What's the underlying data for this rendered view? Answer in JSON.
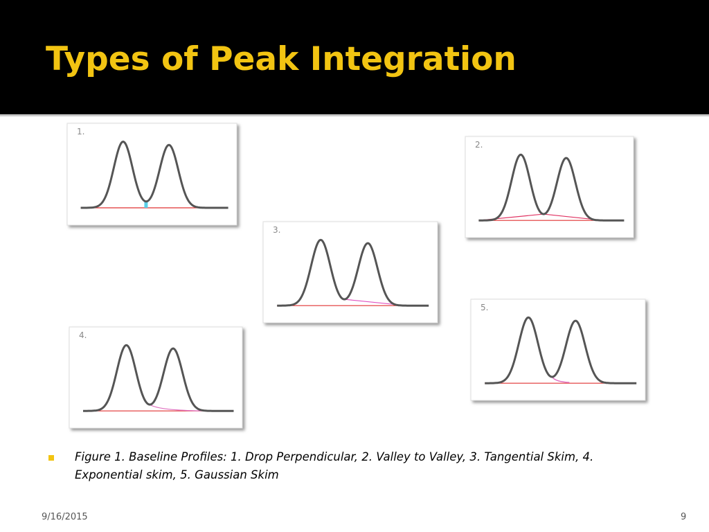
{
  "header": {
    "title": "Types of Peak Integration"
  },
  "figures": [
    {
      "label": "1."
    },
    {
      "label": "2."
    },
    {
      "label": "3."
    },
    {
      "label": "4."
    },
    {
      "label": "5."
    }
  ],
  "caption": {
    "lines": [
      "Figure 1. Baseline Profiles: 1. Drop Perpendicular,  2. Valley to Valley, 3. Tangential Skim, 4.",
      "Exponential skim, 5. Gaussian Skim"
    ]
  },
  "footer": {
    "date": "9/16/2015",
    "page": "9"
  }
}
